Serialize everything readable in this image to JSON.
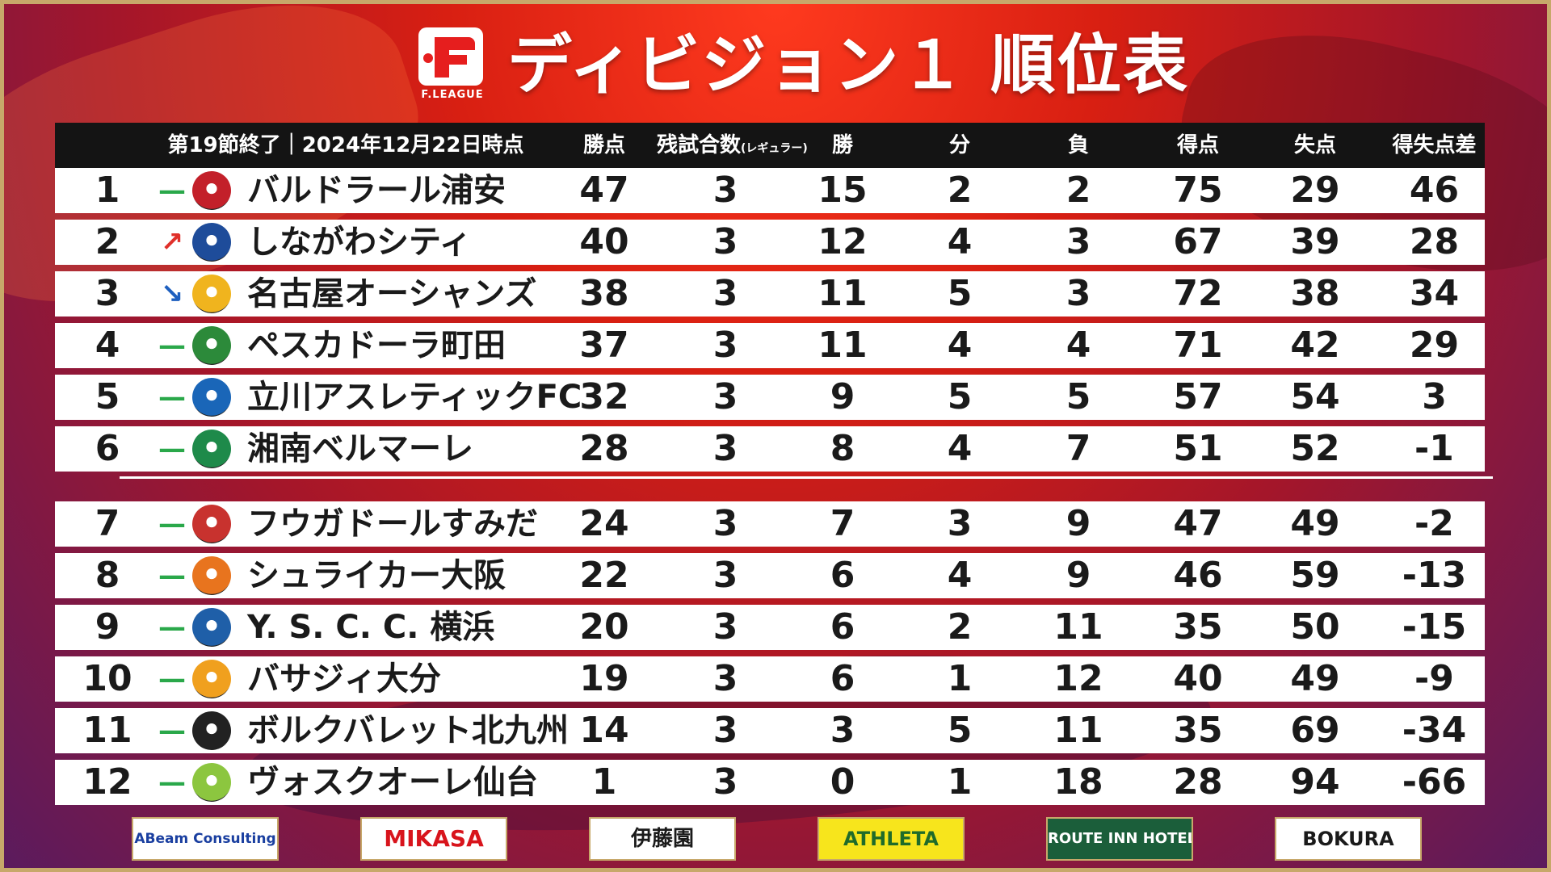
{
  "header": {
    "logo_text": "F.LEAGUE",
    "title": "ディビジョン１ 順位表"
  },
  "table": {
    "headers": {
      "status": "第19節終了｜2024年12月22日時点",
      "points": "勝点",
      "remaining": "残試合数",
      "remaining_note": "(レギュラー)",
      "wins": "勝",
      "draws": "分",
      "losses": "負",
      "goals_for": "得点",
      "goals_against": "失点",
      "goal_diff": "得失点差"
    },
    "rows": [
      {
        "rank": "1",
        "trend": "—",
        "team": "バルドラール浦安",
        "points": "47",
        "remaining": "3",
        "w": "15",
        "d": "2",
        "l": "2",
        "gf": "75",
        "ga": "29",
        "gd": "46"
      },
      {
        "rank": "2",
        "trend": "↗",
        "team": "しながわシティ",
        "points": "40",
        "remaining": "3",
        "w": "12",
        "d": "4",
        "l": "3",
        "gf": "67",
        "ga": "39",
        "gd": "28"
      },
      {
        "rank": "3",
        "trend": "↘",
        "team": "名古屋オーシャンズ",
        "points": "38",
        "remaining": "3",
        "w": "11",
        "d": "5",
        "l": "3",
        "gf": "72",
        "ga": "38",
        "gd": "34"
      },
      {
        "rank": "4",
        "trend": "—",
        "team": "ペスカドーラ町田",
        "points": "37",
        "remaining": "3",
        "w": "11",
        "d": "4",
        "l": "4",
        "gf": "71",
        "ga": "42",
        "gd": "29"
      },
      {
        "rank": "5",
        "trend": "—",
        "team": "立川アスレティックFC",
        "points": "32",
        "remaining": "3",
        "w": "9",
        "d": "5",
        "l": "5",
        "gf": "57",
        "ga": "54",
        "gd": "3"
      },
      {
        "rank": "6",
        "trend": "—",
        "team": "湘南ベルマーレ",
        "points": "28",
        "remaining": "3",
        "w": "8",
        "d": "4",
        "l": "7",
        "gf": "51",
        "ga": "52",
        "gd": "-1"
      },
      {
        "rank": "7",
        "trend": "—",
        "team": "フウガドールすみだ",
        "points": "24",
        "remaining": "3",
        "w": "7",
        "d": "3",
        "l": "9",
        "gf": "47",
        "ga": "49",
        "gd": "-2"
      },
      {
        "rank": "8",
        "trend": "—",
        "team": "シュライカー大阪",
        "points": "22",
        "remaining": "3",
        "w": "6",
        "d": "4",
        "l": "9",
        "gf": "46",
        "ga": "59",
        "gd": "-13"
      },
      {
        "rank": "9",
        "trend": "—",
        "team": "Y. S. C. C. 横浜",
        "points": "20",
        "remaining": "3",
        "w": "6",
        "d": "2",
        "l": "11",
        "gf": "35",
        "ga": "50",
        "gd": "-15"
      },
      {
        "rank": "10",
        "trend": "—",
        "team": "バサジィ大分",
        "points": "19",
        "remaining": "3",
        "w": "6",
        "d": "1",
        "l": "12",
        "gf": "40",
        "ga": "49",
        "gd": "-9"
      },
      {
        "rank": "11",
        "trend": "—",
        "team": "ボルクバレット北九州",
        "points": "14",
        "remaining": "3",
        "w": "3",
        "d": "5",
        "l": "11",
        "gf": "35",
        "ga": "69",
        "gd": "-34"
      },
      {
        "rank": "12",
        "trend": "—",
        "team": "ヴォスクオーレ仙台",
        "points": "1",
        "remaining": "3",
        "w": "0",
        "d": "1",
        "l": "18",
        "gf": "28",
        "ga": "94",
        "gd": "-66"
      }
    ]
  },
  "sponsors": [
    {
      "name": "ABeam Consulting",
      "color": "#1a3fa0",
      "bg": "#ffffff"
    },
    {
      "name": "MIKASA",
      "color": "#d8141c",
      "bg": "#ffffff"
    },
    {
      "name": "伊藤園",
      "color": "#1a1a1a",
      "bg": "#ffffff"
    },
    {
      "name": "ATHLETA",
      "color": "#1f6b2a",
      "bg": "#f7e51c"
    },
    {
      "name": "ROUTE INN HOTELS",
      "color": "#ffffff",
      "bg": "#1b5e3a"
    },
    {
      "name": "BOKURA",
      "color": "#1a1a1a",
      "bg": "#ffffff"
    }
  ],
  "colors": {
    "trend_flat": "#2aa84a",
    "trend_up": "#e0302a",
    "trend_down": "#1e5fbf",
    "emblems": [
      "#c3202a",
      "#1e4c9a",
      "#f0b41e",
      "#2c8a3a",
      "#1a66b8",
      "#1e8a4a",
      "#c8322e",
      "#e8741e",
      "#1f5fa8",
      "#f0a01e",
      "#222222",
      "#8cc63f"
    ]
  }
}
